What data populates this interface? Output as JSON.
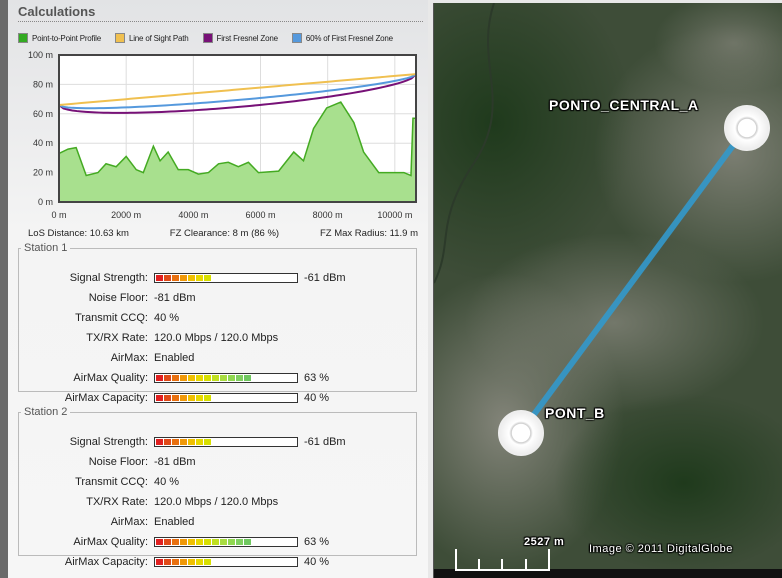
{
  "section_title": "Calculations",
  "legend": [
    {
      "label": "Point-to-Point Profile",
      "color": "#33aa22"
    },
    {
      "label": "Line of Sight Path",
      "color": "#f0c050"
    },
    {
      "label": "First Fresnel Zone",
      "color": "#771177"
    },
    {
      "label": "60% of First Fresnel Zone",
      "color": "#5599dd"
    }
  ],
  "chart_data": {
    "type": "area",
    "x_unit": "m",
    "y_unit": "m",
    "xlim": [
      0,
      10630
    ],
    "ylim": [
      0,
      100
    ],
    "x_ticks": [
      "0 m",
      "2000 m",
      "4000 m",
      "6000 m",
      "8000 m",
      "10000 m"
    ],
    "x_tick_values": [
      0,
      2000,
      4000,
      6000,
      8000,
      10000
    ],
    "y_ticks": [
      "100 m",
      "80 m",
      "60 m",
      "40 m",
      "20 m",
      "0 m"
    ],
    "y_tick_values": [
      100,
      80,
      60,
      40,
      20,
      0
    ],
    "profile": {
      "x": [
        0,
        270,
        510,
        810,
        1160,
        1400,
        1700,
        2000,
        2300,
        2510,
        2810,
        3010,
        3250,
        3550,
        3850,
        4150,
        4450,
        4750,
        5040,
        5340,
        5640,
        5940,
        6540,
        6990,
        7280,
        7580,
        7970,
        8390,
        8780,
        9070,
        9520,
        10270,
        10480,
        10540,
        10630
      ],
      "y": [
        33,
        36,
        37,
        18,
        20,
        26,
        24,
        31,
        22,
        20,
        38,
        28,
        34,
        22,
        22,
        19,
        20,
        26,
        27,
        24,
        27,
        20,
        21,
        34,
        28,
        50,
        64,
        68,
        54,
        34,
        20,
        20,
        18,
        57,
        57
      ]
    },
    "los": {
      "start": 66,
      "end": 87
    },
    "fresnel_max_radius": 11.9
  },
  "stats": {
    "los": "LoS Distance: 10.63 km",
    "fz_clear": "FZ Clearance: 8 m  (86 %)",
    "fz_max": "FZ Max Radius: 11.9 m"
  },
  "stations": [
    {
      "title": "Station 1",
      "rows": [
        {
          "label": "Signal Strength:",
          "value": "-61 dBm",
          "bar": 0.4
        },
        {
          "label": "Noise Floor:",
          "value": "-81 dBm"
        },
        {
          "label": "Transmit CCQ:",
          "value": "40 %"
        },
        {
          "label": "TX/RX Rate:",
          "value": "120.0 Mbps / 120.0 Mbps"
        },
        {
          "label": "AirMax:",
          "value": "Enabled"
        },
        {
          "label": "AirMax Quality:",
          "value": "63 %",
          "bar": 0.63
        },
        {
          "label": "AirMax Capacity:",
          "value": "40 %",
          "bar": 0.4
        }
      ]
    },
    {
      "title": "Station 2",
      "rows": [
        {
          "label": "Signal Strength:",
          "value": "-61 dBm",
          "bar": 0.4
        },
        {
          "label": "Noise Floor:",
          "value": "-81 dBm"
        },
        {
          "label": "Transmit CCQ:",
          "value": "40 %"
        },
        {
          "label": "TX/RX Rate:",
          "value": "120.0 Mbps / 120.0 Mbps"
        },
        {
          "label": "AirMax:",
          "value": "Enabled"
        },
        {
          "label": "AirMax Quality:",
          "value": "63 %",
          "bar": 0.63
        },
        {
          "label": "AirMax Capacity:",
          "value": "40 %",
          "bar": 0.4
        }
      ]
    }
  ],
  "map": {
    "point_a": "PONTO_CENTRAL_A",
    "point_b": "PONT_B",
    "scale": "2527 m",
    "copyright": "Image © 2011 DigitalGlobe",
    "link_color": "#3399cc"
  }
}
